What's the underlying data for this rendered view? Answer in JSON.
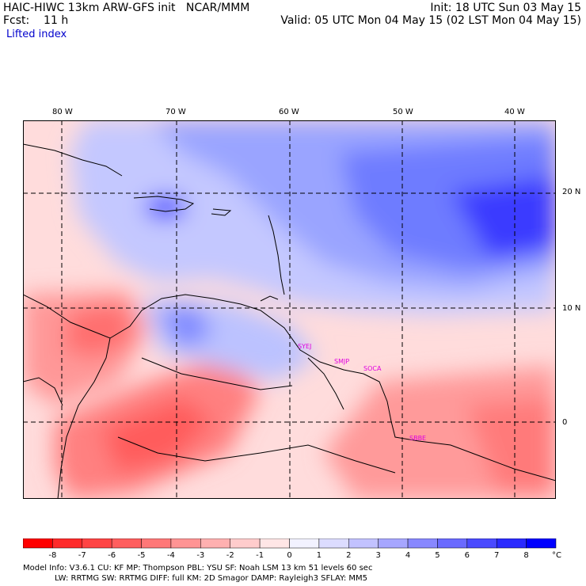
{
  "header": {
    "title": "HAIC-HIWC 13km ARW-GFS init   NCAR/MMM",
    "init": "Init: 18 UTC Sun 03 May 15",
    "fcst": "Fcst:    11 h",
    "valid": "Valid: 05 UTC Mon 04 May 15 (02 LST Mon 04 May 15)",
    "field": "Lifted index"
  },
  "map": {
    "lon_labels": [
      "80 W",
      "70 W",
      "60 W",
      "50 W",
      "40 W"
    ],
    "lat_labels": [
      "20 N",
      "10 N",
      "0"
    ],
    "stations": [
      "SYEJ",
      "SMJP",
      "SOCA",
      "SBBE"
    ]
  },
  "colorbar": {
    "labels": [
      "-8",
      "-7",
      "-6",
      "-5",
      "-4",
      "-3",
      "-2",
      "-1",
      "0",
      "1",
      "2",
      "3",
      "4",
      "5",
      "6",
      "7",
      "8"
    ],
    "unit": "°C",
    "colors": [
      "#ff0000",
      "#ff2a2a",
      "#ff4444",
      "#ff5e5e",
      "#ff7878",
      "#ff9494",
      "#ffb0b0",
      "#ffcccc",
      "#ffe6e6",
      "#f2f2ff",
      "#dcdcff",
      "#c2c2ff",
      "#a6a6ff",
      "#8888ff",
      "#6a6aff",
      "#4a4aff",
      "#2a2aff",
      "#0000ff"
    ]
  },
  "model_info": {
    "line1": "Model Info: V3.6.1    CU: KF      MP: Thompson     PBL: YSU       SF: Noah LSM      13 km    51 levels   60 sec",
    "line2": "LW: RRTMG    SW: RRTMG   DIFF: full    KM: 2D Smagor DAMP: Rayleigh3   SFLAY: MM5"
  }
}
